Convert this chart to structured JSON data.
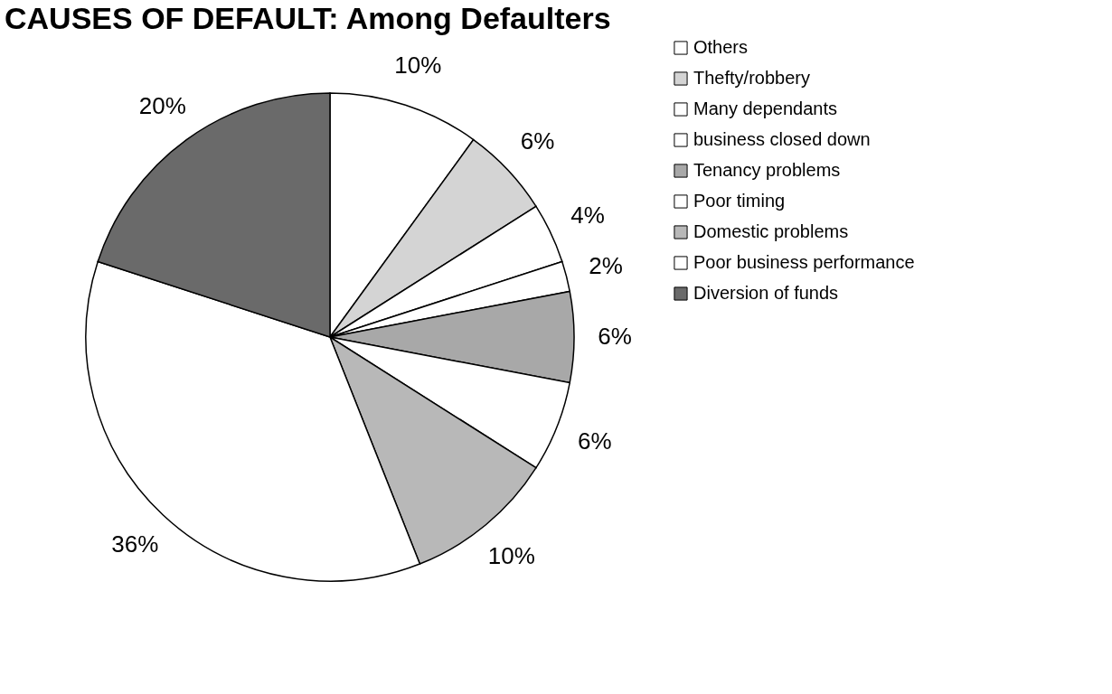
{
  "chart_data": {
    "type": "pie",
    "title": "CAUSES OF DEFAULT: Among Defaulters",
    "categories": [
      "Others",
      "Thefty/robbery",
      "Many dependants",
      "business closed down",
      "Tenancy problems",
      "Poor timing",
      "Domestic problems",
      "Poor business performance",
      "Diversion of funds"
    ],
    "values": [
      10,
      6,
      4,
      2,
      6,
      6,
      10,
      36,
      20
    ],
    "value_labels": [
      "10%",
      "6%",
      "4%",
      "2%",
      "6%",
      "6%",
      "10%",
      "36%",
      "20%"
    ],
    "colors": [
      "#ffffff",
      "#d4d4d4",
      "#ffffff",
      "#ffffff",
      "#a8a8a8",
      "#ffffff",
      "#b8b8b8",
      "#ffffff",
      "#6a6a6a"
    ],
    "legend": "right"
  }
}
